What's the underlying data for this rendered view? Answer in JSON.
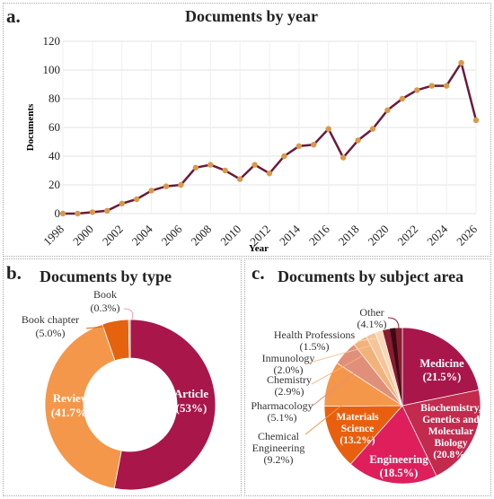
{
  "panels": {
    "a": {
      "label": "a.",
      "title": "Documents by year"
    },
    "b": {
      "label": "b.",
      "title": "Documents by type"
    },
    "c": {
      "label": "c.",
      "title": "Documents by subject area"
    }
  },
  "chart_data": [
    {
      "type": "line",
      "title": "Documents by year",
      "xlabel": "Year",
      "ylabel": "Documents",
      "ylim": [
        0,
        120
      ],
      "xlim": [
        1998,
        2026
      ],
      "yticks": [
        0,
        20,
        40,
        60,
        80,
        100,
        120
      ],
      "xticks": [
        1998,
        2000,
        2002,
        2004,
        2006,
        2008,
        2010,
        2012,
        2014,
        2016,
        2018,
        2020,
        2022,
        2024,
        2026
      ],
      "grid": true,
      "line_color": "#6b1a3c",
      "marker_color": "#d89a4a",
      "x": [
        1998,
        1999,
        2000,
        2001,
        2002,
        2003,
        2004,
        2005,
        2006,
        2007,
        2008,
        2009,
        2010,
        2011,
        2012,
        2013,
        2014,
        2015,
        2016,
        2017,
        2018,
        2019,
        2020,
        2021,
        2022,
        2023,
        2024,
        2025,
        2026
      ],
      "y": [
        0,
        0,
        1,
        2,
        7,
        10,
        16,
        19,
        20,
        32,
        34,
        30,
        24,
        34,
        28,
        40,
        47,
        48,
        59,
        39,
        51,
        59,
        72,
        80,
        86,
        89,
        89,
        105,
        65
      ]
    },
    {
      "type": "pie",
      "title": "Documents by type",
      "categories": [
        "Article",
        "Review",
        "Book chapter",
        "Book"
      ],
      "labels": [
        "Article\n(53%)",
        "Review\n(41.7%)",
        "Book chapter\n(5.0%)",
        "Book\n(0.3%)"
      ],
      "values": [
        53,
        41.7,
        5.0,
        0.3
      ],
      "colors": [
        "#a8164a",
        "#f5974a",
        "#e5620f",
        "#f0a0b0"
      ],
      "donut": true
    },
    {
      "type": "pie",
      "title": "Documents by subject area",
      "categories": [
        "Medicine",
        "Biochemistry, Genetics and Molecular Biology",
        "Engineering",
        "Materials Science",
        "Chemical Engineering",
        "Pharmacology",
        "Chemistry",
        "Inmunology",
        "Health Professions",
        "Other"
      ],
      "labels": [
        "Medicine\n(21.5%)",
        "Biochemistry,\nGenetics and\nMolecular\nBiology\n(20.8%)",
        "Engineering\n(18.5%)",
        "Materials\nScience\n(13.2%)",
        "Chemical\nEngineering\n(9.2%)",
        "Pharmacology\n(5.1%)",
        "Chemistry\n(2.9%)",
        "Inmunology\n(2.0%)",
        "Health Professions\n(1.5%)",
        "Other\n(4.1%)"
      ],
      "values": [
        21.5,
        20.8,
        18.5,
        13.2,
        9.2,
        5.1,
        2.9,
        2.0,
        1.5,
        4.1
      ],
      "colors": [
        "#a8164a",
        "#c22a4e",
        "#de1f5c",
        "#e8600f",
        "#f5974a",
        "#e0907a",
        "#f3b27a",
        "#f6c49a",
        "#f9d8b8",
        "#8a1c30"
      ],
      "dark_sliver_color": "#3a0b14"
    }
  ]
}
